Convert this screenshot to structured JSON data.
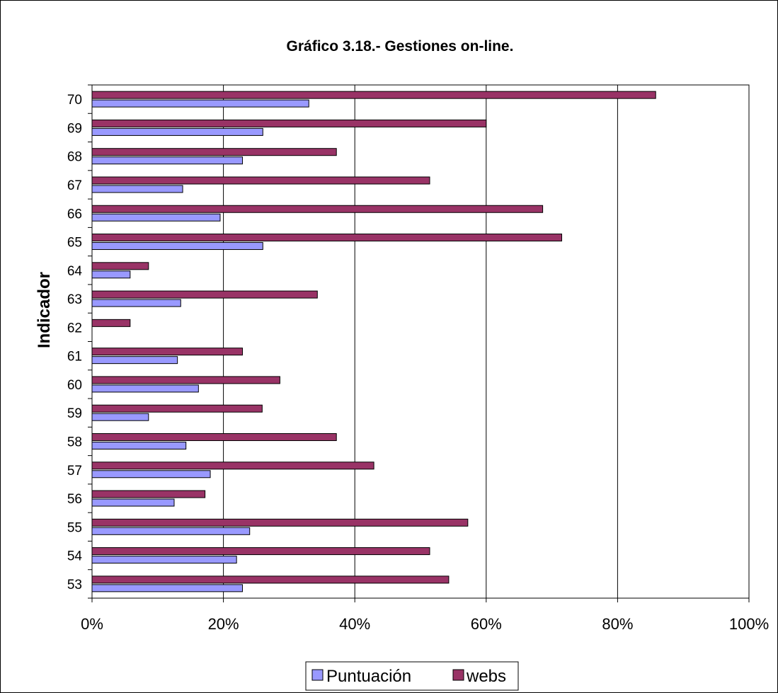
{
  "chart_data": {
    "type": "bar",
    "orientation": "horizontal",
    "title": "Gráfico 3.18.- Gestiones on-line.",
    "ylabel": "Indicador",
    "xlabel": "",
    "xlim": [
      0,
      100
    ],
    "x_ticks": [
      "0%",
      "20%",
      "40%",
      "60%",
      "80%",
      "100%"
    ],
    "grid": "vertical",
    "legend_position": "bottom",
    "categories": [
      "53",
      "54",
      "55",
      "56",
      "57",
      "58",
      "59",
      "60",
      "61",
      "62",
      "63",
      "64",
      "65",
      "66",
      "67",
      "68",
      "69",
      "70"
    ],
    "series": [
      {
        "name": "Puntuación",
        "color": "#9999ff",
        "values": [
          22.9,
          22.0,
          24.0,
          12.5,
          18.0,
          14.3,
          8.6,
          16.2,
          13.0,
          0,
          13.5,
          5.8,
          26.0,
          19.5,
          13.8,
          22.9,
          26.0,
          33.0
        ]
      },
      {
        "name": "webs",
        "color": "#993366",
        "values": [
          54.3,
          51.4,
          57.2,
          17.2,
          42.9,
          37.2,
          25.9,
          28.6,
          22.9,
          5.8,
          34.3,
          8.6,
          71.5,
          68.6,
          51.4,
          37.2,
          60.0,
          85.8
        ]
      }
    ]
  }
}
